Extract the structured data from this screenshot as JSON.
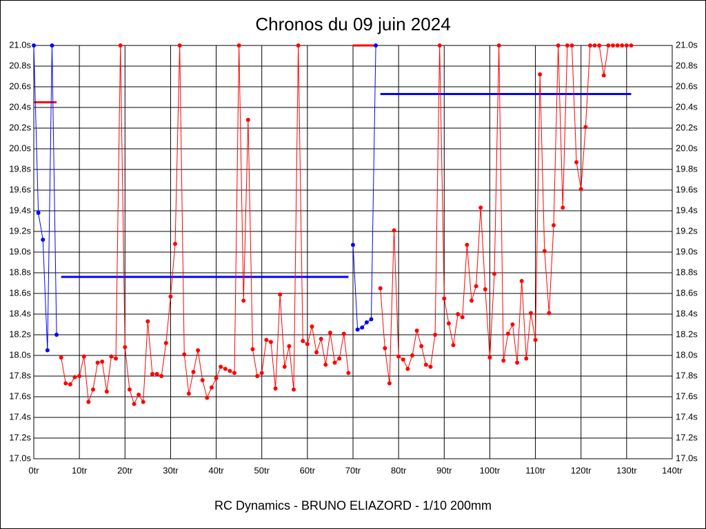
{
  "chart_data": {
    "type": "line",
    "title": "Chronos du 09 juin 2024",
    "footer": "RC Dynamics - BRUNO ELIAZORD - 1/10 200mm",
    "xlim": [
      0,
      140
    ],
    "xticks": [
      {
        "value": 0,
        "label": "0tr"
      },
      {
        "value": 10,
        "label": "10tr"
      },
      {
        "value": 20,
        "label": "20tr"
      },
      {
        "value": 30,
        "label": "30tr"
      },
      {
        "value": 40,
        "label": "40tr"
      },
      {
        "value": 50,
        "label": "50tr"
      },
      {
        "value": 60,
        "label": "60tr"
      },
      {
        "value": 70,
        "label": "70tr"
      },
      {
        "value": 80,
        "label": "80tr"
      },
      {
        "value": 90,
        "label": "90tr"
      },
      {
        "value": 100,
        "label": "100tr"
      },
      {
        "value": 110,
        "label": "110tr"
      },
      {
        "value": 120,
        "label": "120tr"
      },
      {
        "value": 130,
        "label": "130tr"
      },
      {
        "value": 140,
        "label": "140tr"
      }
    ],
    "ylim": [
      17,
      21
    ],
    "yticks": [
      {
        "value": 17,
        "label": "17.0s"
      },
      {
        "value": 17.2,
        "label": "17.2s"
      },
      {
        "value": 17.4,
        "label": "17.4s"
      },
      {
        "value": 17.6,
        "label": "17.6s"
      },
      {
        "value": 17.8,
        "label": "17.8s"
      },
      {
        "value": 18,
        "label": "18.0s"
      },
      {
        "value": 18.2,
        "label": "18.2s"
      },
      {
        "value": 18.4,
        "label": "18.4s"
      },
      {
        "value": 18.6,
        "label": "18.6s"
      },
      {
        "value": 18.8,
        "label": "18.8s"
      },
      {
        "value": 19,
        "label": "19.0s"
      },
      {
        "value": 19.2,
        "label": "19.2s"
      },
      {
        "value": 19.4,
        "label": "19.4s"
      },
      {
        "value": 19.6,
        "label": "19.6s"
      },
      {
        "value": 19.8,
        "label": "19.8s"
      },
      {
        "value": 20,
        "label": "20.0s"
      },
      {
        "value": 20.2,
        "label": "20.2s"
      },
      {
        "value": 20.4,
        "label": "20.4s"
      },
      {
        "value": 20.6,
        "label": "20.6s"
      },
      {
        "value": 20.8,
        "label": "20.8s"
      },
      {
        "value": 21,
        "label": "21.0s"
      }
    ],
    "grid": true,
    "series": [
      {
        "color": "#0000ff",
        "x": [
          0,
          1,
          2,
          3,
          4,
          5
        ],
        "values": [
          21,
          19.38,
          19.12,
          18.05,
          21,
          18.2
        ]
      },
      {
        "color": "#ff0000",
        "x": [
          6,
          7,
          8,
          9,
          10,
          11,
          12,
          13,
          14,
          15,
          16,
          17,
          18,
          19,
          20,
          21,
          22,
          23,
          24,
          25,
          26,
          27,
          28,
          29,
          30,
          31,
          32,
          33,
          34,
          35,
          36,
          37,
          38,
          39,
          40,
          41,
          42,
          43,
          44,
          45,
          46,
          47,
          48,
          49,
          50,
          51,
          52,
          53,
          54,
          55,
          56,
          57,
          58,
          59,
          60,
          61,
          62,
          63,
          64,
          65,
          66,
          67,
          68,
          69
        ],
        "values": [
          17.98,
          17.73,
          17.72,
          17.79,
          17.8,
          17.99,
          17.55,
          17.67,
          17.93,
          17.94,
          17.65,
          17.99,
          17.97,
          21,
          18.08,
          17.67,
          17.53,
          17.62,
          17.55,
          18.33,
          17.82,
          17.82,
          17.8,
          18.12,
          18.57,
          19.08,
          21,
          18.01,
          17.63,
          17.84,
          18.05,
          17.76,
          17.59,
          17.69,
          17.78,
          17.89,
          17.87,
          17.85,
          17.83,
          21,
          18.53,
          20.28,
          18.06,
          17.8,
          17.83,
          18.15,
          18.13,
          17.68,
          18.59,
          17.89,
          18.09,
          17.67,
          21,
          18.14,
          18.11,
          18.28,
          18.03,
          18.16,
          17.91,
          18.22,
          17.93,
          17.97,
          18.21,
          17.83
        ]
      },
      {
        "color": "#0000ff",
        "x": [
          70,
          71,
          72,
          73,
          74,
          75
        ],
        "values": [
          19.07,
          18.25,
          18.27,
          18.32,
          18.35,
          21
        ]
      },
      {
        "color": "#ff0000",
        "x": [
          76,
          77,
          78,
          79,
          80,
          81,
          82,
          83,
          84,
          85,
          86,
          87,
          88,
          89,
          90,
          91,
          92,
          93,
          94,
          95,
          96,
          97,
          98,
          99,
          100,
          101,
          102,
          103,
          104,
          105,
          106,
          107,
          108,
          109,
          110,
          111,
          112,
          113,
          114,
          115,
          116,
          117,
          118,
          119,
          120,
          121,
          122,
          123,
          124,
          125,
          126,
          127,
          128,
          129,
          130,
          131
        ],
        "values": [
          18.65,
          18.07,
          17.73,
          19.21,
          17.99,
          17.96,
          17.87,
          18,
          18.24,
          18.09,
          17.91,
          17.89,
          18.2,
          21,
          18.55,
          18.31,
          18.1,
          18.4,
          18.37,
          19.07,
          18.53,
          18.67,
          19.43,
          18.64,
          17.98,
          18.79,
          21,
          17.95,
          18.21,
          18.3,
          17.93,
          18.72,
          17.97,
          18.41,
          18.15,
          20.72,
          19.01,
          18.41,
          19.26,
          21,
          19.43,
          21,
          21,
          19.87,
          19.61,
          20.21,
          21,
          21,
          21,
          20.71,
          21,
          21,
          21,
          21,
          21,
          21
        ]
      }
    ],
    "average_lines": [
      {
        "color": "#ff0000",
        "x": [
          0,
          5
        ],
        "values": [
          20.45,
          20.45
        ]
      },
      {
        "color": "#0000ff",
        "x": [
          6,
          69
        ],
        "values": [
          18.76,
          18.76
        ]
      },
      {
        "color": "#ff0000",
        "x": [
          70,
          75
        ],
        "values": [
          21,
          21
        ]
      },
      {
        "color": "#0000ff",
        "x": [
          76,
          131
        ],
        "values": [
          20.53,
          20.53
        ]
      }
    ]
  }
}
